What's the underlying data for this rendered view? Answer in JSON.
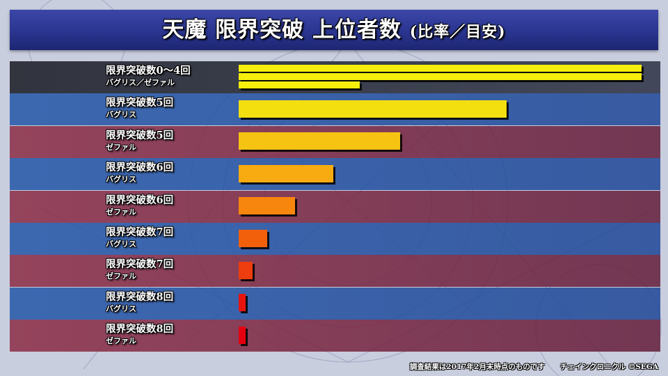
{
  "title": {
    "main": "天魔 限界突破 上位者数",
    "sub": "(比率／目安)"
  },
  "chart_data": {
    "type": "bar",
    "orientation": "horizontal",
    "value_unit": "relative ratio (longest bar = 100)",
    "categories": [
      {
        "label": "限界突破数0～4回",
        "sub": "バグリス／ゼファル",
        "values": [
          100,
          100,
          30
        ],
        "colors": [
          "#f6ee0c",
          "#f6ee0c",
          "#f6ee0c"
        ]
      },
      {
        "label": "限界突破数5回",
        "sub": "バグリス",
        "values": [
          66.5
        ],
        "colors": [
          "#f3df10"
        ]
      },
      {
        "label": "限界突破数5回",
        "sub": "ゼファル",
        "values": [
          40
        ],
        "colors": [
          "#f7c313"
        ]
      },
      {
        "label": "限界突破数6回",
        "sub": "バグリス",
        "values": [
          23.5
        ],
        "colors": [
          "#f8ab10"
        ]
      },
      {
        "label": "限界突破数6回",
        "sub": "ゼファル",
        "values": [
          14
        ],
        "colors": [
          "#f6860e"
        ]
      },
      {
        "label": "限界突破数7回",
        "sub": "バグリス",
        "values": [
          7
        ],
        "colors": [
          "#f2600c"
        ]
      },
      {
        "label": "限界突破数7回",
        "sub": "ゼファル",
        "values": [
          3.5
        ],
        "colors": [
          "#ee3d0e"
        ]
      },
      {
        "label": "限界突破数8回",
        "sub": "バグリス",
        "values": [
          1.8
        ],
        "colors": [
          "#e8140e"
        ]
      },
      {
        "label": "限界突破数8回",
        "sub": "ゼファル",
        "values": [
          1.8
        ],
        "colors": [
          "#e6000f"
        ]
      }
    ],
    "xlim": [
      0,
      100
    ],
    "grid": false,
    "legend": "none"
  },
  "footer": {
    "note": "調査結果は2017年2月末時点のものです",
    "credit": "チェインクロニクル ©SEGA"
  },
  "colors": {
    "title_bar": "#2a3590",
    "band_dark": "#282a36",
    "band_blue": "#285aaa",
    "band_red": "#8c2d46",
    "background": "#c9cede"
  }
}
